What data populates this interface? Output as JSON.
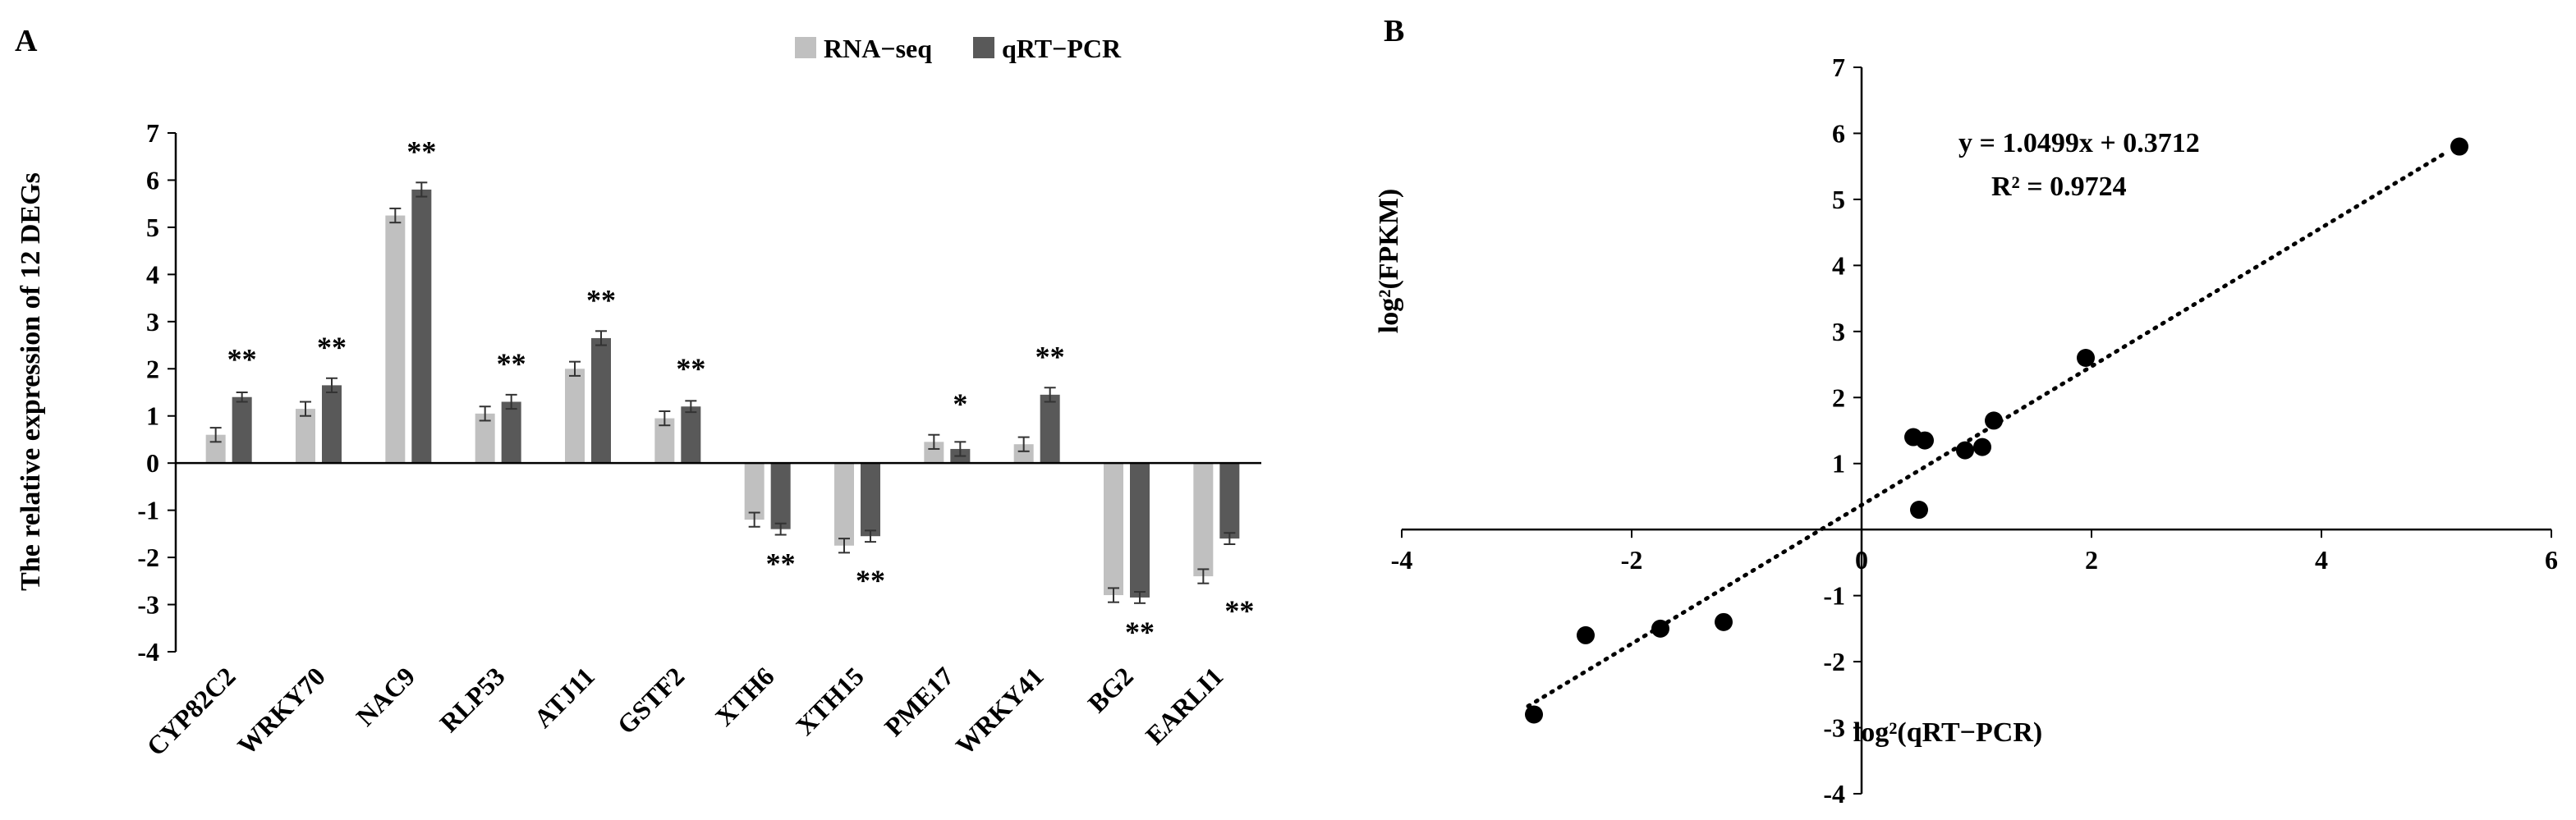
{
  "chart_data": [
    {
      "panel_label": "A",
      "type": "bar",
      "ylabel": "The relative expression of 12 DEGs",
      "xlabel": "",
      "ylim": [
        -4,
        7
      ],
      "yticks": [
        "7",
        "6",
        "5",
        "4",
        "3",
        "2",
        "1",
        "0",
        "-1",
        "-2",
        "-3",
        "-4"
      ],
      "categories": [
        "CYP82C2",
        "WRKY70",
        "NAC9",
        "RLP53",
        "ATJ11",
        "GSTF2",
        "XTH6",
        "XTH15",
        "PME17",
        "WRKY41",
        "BG2",
        "EARLI1"
      ],
      "series": [
        {
          "name": "RNA−seq",
          "color": "#c0c0c0",
          "values": [
            0.6,
            1.15,
            5.25,
            1.05,
            2.0,
            0.95,
            -1.2,
            -1.75,
            0.45,
            0.4,
            -2.8,
            -2.4
          ],
          "errors": [
            0.15,
            0.15,
            0.15,
            0.15,
            0.15,
            0.15,
            0.15,
            0.15,
            0.15,
            0.15,
            0.15,
            0.15
          ]
        },
        {
          "name": "qRT−PCR",
          "color": "#595959",
          "values": [
            1.4,
            1.65,
            5.8,
            1.3,
            2.65,
            1.2,
            -1.4,
            -1.55,
            0.3,
            1.45,
            -2.85,
            -1.6
          ],
          "errors": [
            0.1,
            0.15,
            0.15,
            0.15,
            0.15,
            0.12,
            0.12,
            0.12,
            0.15,
            0.15,
            0.12,
            0.12
          ]
        }
      ],
      "significance": [
        "**",
        "**",
        "**",
        "**",
        "**",
        "**",
        "**",
        "**",
        "*",
        "**",
        "**",
        "**"
      ],
      "legend_position": "top-right"
    },
    {
      "panel_label": "B",
      "type": "scatter",
      "xlabel": "log²(qRT−PCR)",
      "ylabel": "log²(FPKM)",
      "xlim": [
        -4,
        6
      ],
      "ylim": [
        -4,
        7
      ],
      "xticks": [
        "-4",
        "-2",
        "0",
        "2",
        "4",
        "6"
      ],
      "yticks": [
        "7",
        "6",
        "5",
        "4",
        "3",
        "2",
        "1",
        "-1",
        "-2",
        "-3",
        "-4"
      ],
      "points": [
        {
          "x": -2.85,
          "y": -2.8
        },
        {
          "x": -2.4,
          "y": -1.6
        },
        {
          "x": -1.75,
          "y": -1.5
        },
        {
          "x": -1.2,
          "y": -1.4
        },
        {
          "x": 0.45,
          "y": 1.4
        },
        {
          "x": 0.55,
          "y": 1.35
        },
        {
          "x": 0.9,
          "y": 1.2
        },
        {
          "x": 1.05,
          "y": 1.25
        },
        {
          "x": 1.15,
          "y": 1.65
        },
        {
          "x": 0.5,
          "y": 0.3
        },
        {
          "x": 1.95,
          "y": 2.6
        },
        {
          "x": 5.2,
          "y": 5.8
        }
      ],
      "trendline": {
        "slope": 1.0499,
        "intercept": 0.3712,
        "x_from": -2.9,
        "x_to": 5.1
      },
      "equation": "y = 1.0499x + 0.3712",
      "r2_label": "R² = 0.9724"
    }
  ]
}
